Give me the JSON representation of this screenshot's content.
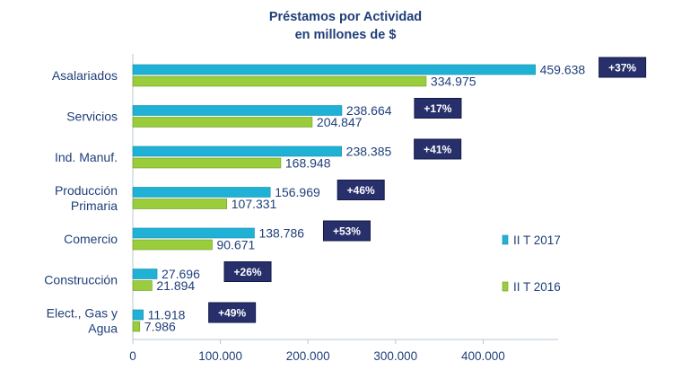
{
  "chart_data": {
    "type": "bar",
    "orientation": "horizontal",
    "title": "Préstamos por Actividad",
    "subtitle": "en millones de $",
    "categories": [
      [
        "Asalariados"
      ],
      [
        "Servicios"
      ],
      [
        "Ind. Manuf."
      ],
      [
        "Producción",
        "Primaria"
      ],
      [
        "Comercio"
      ],
      [
        "Construcción"
      ],
      [
        "Elect., Gas y",
        "Agua"
      ]
    ],
    "series": [
      {
        "name": "II T 2017",
        "color": "#1fb2d6",
        "values": [
          459638,
          238664,
          238385,
          156969,
          138786,
          27696,
          11918
        ],
        "labels": [
          "459.638",
          "238.664",
          "238.385",
          "156.969",
          "138.786",
          "27.696",
          "11.918"
        ]
      },
      {
        "name": "II T 2016",
        "color": "#9acd3c",
        "values": [
          334975,
          204847,
          168948,
          107331,
          90671,
          21894,
          7986
        ],
        "labels": [
          "334.975",
          "204.847",
          "168.948",
          "107.331",
          "90.671",
          "21.894",
          "7.986"
        ]
      }
    ],
    "growth_badges": [
      "+37%",
      "+17%",
      "+41%",
      "+46%",
      "+53%",
      "+26%",
      "+49%"
    ],
    "badge_color": "#27306b",
    "x_ticks": [
      0,
      100000,
      200000,
      300000,
      400000
    ],
    "x_tick_labels": [
      "0",
      "100.000",
      "200.000",
      "300.000",
      "400.000"
    ],
    "xlim": [
      0,
      490000
    ],
    "grid": false,
    "legend_position": "right"
  }
}
